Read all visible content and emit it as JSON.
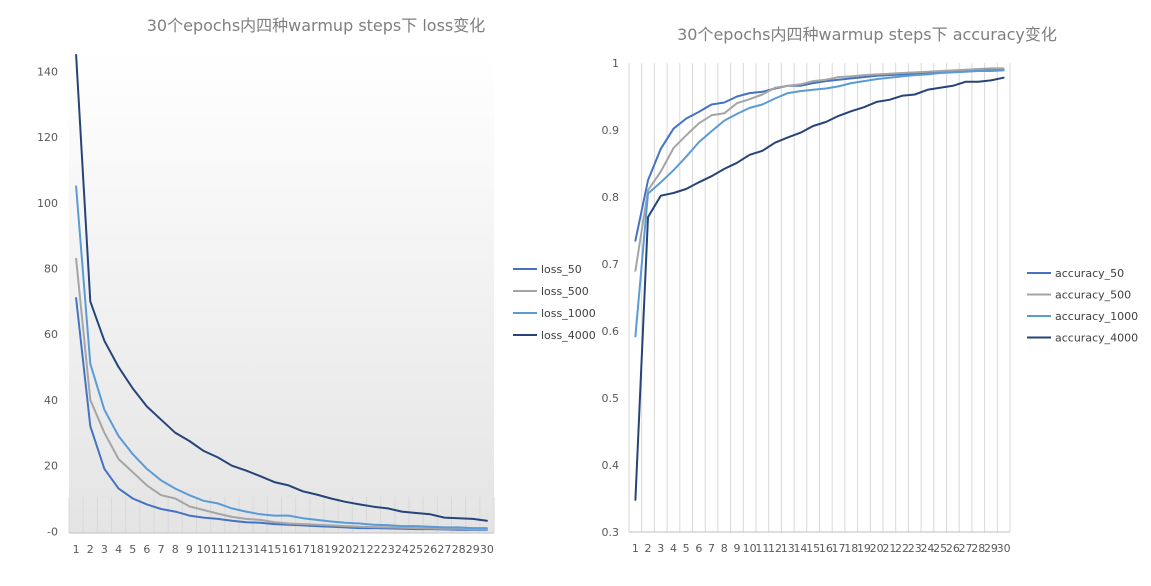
{
  "chart_data": [
    {
      "type": "line",
      "title": "30个epochs内四种warmup  steps下 loss变化",
      "xlabel": "",
      "ylabel": "",
      "ylim": [
        -0.5,
        145
      ],
      "yticks": [
        "-0",
        "20",
        "40",
        "60",
        "80",
        "100",
        "120",
        "140"
      ],
      "ytick_values": [
        0,
        20,
        40,
        60,
        80,
        100,
        120,
        140
      ],
      "categories": [
        "1",
        "2",
        "3",
        "4",
        "5",
        "6",
        "7",
        "8",
        "9",
        "10",
        "11",
        "12",
        "13",
        "14",
        "15",
        "16",
        "17",
        "18",
        "19",
        "20",
        "21",
        "22",
        "23",
        "24",
        "25",
        "26",
        "27",
        "28",
        "29",
        "30"
      ],
      "legend_position": "right",
      "grid": false,
      "series": [
        {
          "name": "loss_50",
          "color": "#4472c4",
          "values": [
            71,
            32,
            19,
            13,
            10,
            8.2,
            6.8,
            6,
            4.8,
            4.2,
            3.8,
            3.2,
            2.8,
            2.6,
            2.2,
            2,
            1.8,
            1.6,
            1.4,
            1.2,
            1,
            1,
            0.9,
            0.8,
            0.7,
            0.7,
            0.6,
            0.5,
            0.5,
            0.5
          ]
        },
        {
          "name": "loss_500",
          "color": "#a5a5a5",
          "values": [
            83,
            40,
            30,
            22,
            18,
            14,
            11,
            10,
            7.6,
            6.5,
            5.4,
            4.4,
            3.8,
            3.5,
            2.8,
            2.4,
            2.2,
            2,
            1.8,
            1.6,
            1.4,
            1.3,
            1.2,
            1.1,
            1,
            0.9,
            0.8,
            0.8,
            0.7,
            0.7
          ]
        },
        {
          "name": "loss_1000",
          "color": "#5b9bd5",
          "values": [
            105,
            51,
            37,
            29,
            23.5,
            19,
            15.5,
            13,
            11,
            9.3,
            8.5,
            7,
            6,
            5.2,
            4.8,
            4.8,
            4,
            3.5,
            3,
            2.6,
            2.4,
            2,
            1.9,
            1.6,
            1.6,
            1.4,
            1.2,
            1.2,
            1,
            1
          ]
        },
        {
          "name": "loss_4000",
          "color": "#264478",
          "values": [
            145,
            70,
            58,
            50,
            43.5,
            38,
            34,
            30,
            27.5,
            24.5,
            22.5,
            20,
            18.5,
            16.8,
            15,
            14,
            12.2,
            11.2,
            10,
            9,
            8.2,
            7.5,
            7,
            6,
            5.6,
            5.2,
            4.2,
            4,
            3.8,
            3.2
          ]
        }
      ]
    },
    {
      "type": "line",
      "title": "30个epochs内四种warmup  steps下 accuracy变化",
      "xlabel": "",
      "ylabel": "",
      "ylim": [
        0.3,
        1.0
      ],
      "yticks": [
        "0.3",
        "0.4",
        "0.5",
        "0.6",
        "0.7",
        "0.8",
        "0.9",
        "1"
      ],
      "ytick_values": [
        0.3,
        0.4,
        0.5,
        0.6,
        0.7,
        0.8,
        0.9,
        1.0
      ],
      "categories": [
        "1",
        "2",
        "3",
        "4",
        "5",
        "6",
        "7",
        "8",
        "9",
        "10",
        "11",
        "12",
        "13",
        "14",
        "15",
        "16",
        "17",
        "18",
        "19",
        "20",
        "21",
        "22",
        "23",
        "24",
        "25",
        "26",
        "27",
        "28",
        "29",
        "30"
      ],
      "legend_position": "right",
      "grid": true,
      "series": [
        {
          "name": "accuracy_50",
          "color": "#4472c4",
          "values": [
            0.735,
            0.825,
            0.872,
            0.902,
            0.917,
            0.927,
            0.938,
            0.941,
            0.95,
            0.955,
            0.957,
            0.962,
            0.966,
            0.966,
            0.97,
            0.973,
            0.975,
            0.977,
            0.979,
            0.981,
            0.982,
            0.983,
            0.984,
            0.985,
            0.986,
            0.987,
            0.988,
            0.989,
            0.989,
            0.99
          ]
        },
        {
          "name": "accuracy_500",
          "color": "#a5a5a5",
          "values": [
            0.69,
            0.81,
            0.838,
            0.873,
            0.892,
            0.91,
            0.922,
            0.925,
            0.94,
            0.946,
            0.953,
            0.963,
            0.966,
            0.968,
            0.973,
            0.975,
            0.979,
            0.98,
            0.982,
            0.983,
            0.984,
            0.985,
            0.986,
            0.987,
            0.988,
            0.989,
            0.99,
            0.991,
            0.992,
            0.992
          ]
        },
        {
          "name": "accuracy_1000",
          "color": "#5b9bd5",
          "values": [
            0.592,
            0.805,
            0.822,
            0.84,
            0.86,
            0.882,
            0.898,
            0.914,
            0.924,
            0.933,
            0.938,
            0.947,
            0.955,
            0.958,
            0.96,
            0.962,
            0.965,
            0.97,
            0.973,
            0.976,
            0.978,
            0.98,
            0.982,
            0.983,
            0.985,
            0.986,
            0.987,
            0.988,
            0.988,
            0.989
          ]
        },
        {
          "name": "accuracy_4000",
          "color": "#264478",
          "values": [
            0.348,
            0.77,
            0.802,
            0.806,
            0.812,
            0.822,
            0.831,
            0.842,
            0.851,
            0.863,
            0.869,
            0.881,
            0.889,
            0.896,
            0.906,
            0.912,
            0.921,
            0.928,
            0.934,
            0.942,
            0.945,
            0.951,
            0.953,
            0.96,
            0.963,
            0.966,
            0.972,
            0.972,
            0.974,
            0.978
          ]
        }
      ]
    }
  ]
}
